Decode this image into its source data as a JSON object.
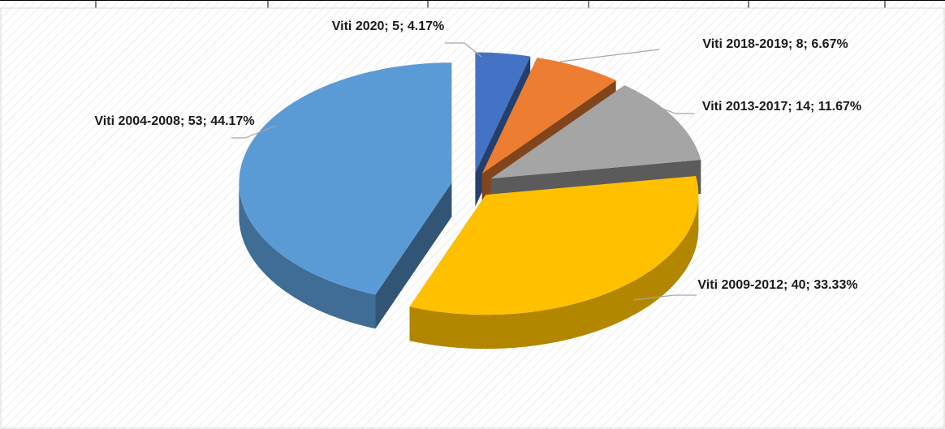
{
  "chart_data": {
    "type": "pie",
    "values": [
      5,
      8,
      14,
      40,
      53
    ],
    "value_labels": [
      "Viti 2020; 5; 4.17%",
      "Viti 2018-2019; 8; 6.67%",
      "Viti 2013-2017; 14; 11.67%",
      "Viti 2009-2012; 40; 33.33%",
      "Viti 2004-2008; 53; 44.17%"
    ],
    "colors": [
      "#4472c4",
      "#ed7d31",
      "#a5a5a5",
      "#ffc000",
      "#5b9bd5"
    ]
  }
}
